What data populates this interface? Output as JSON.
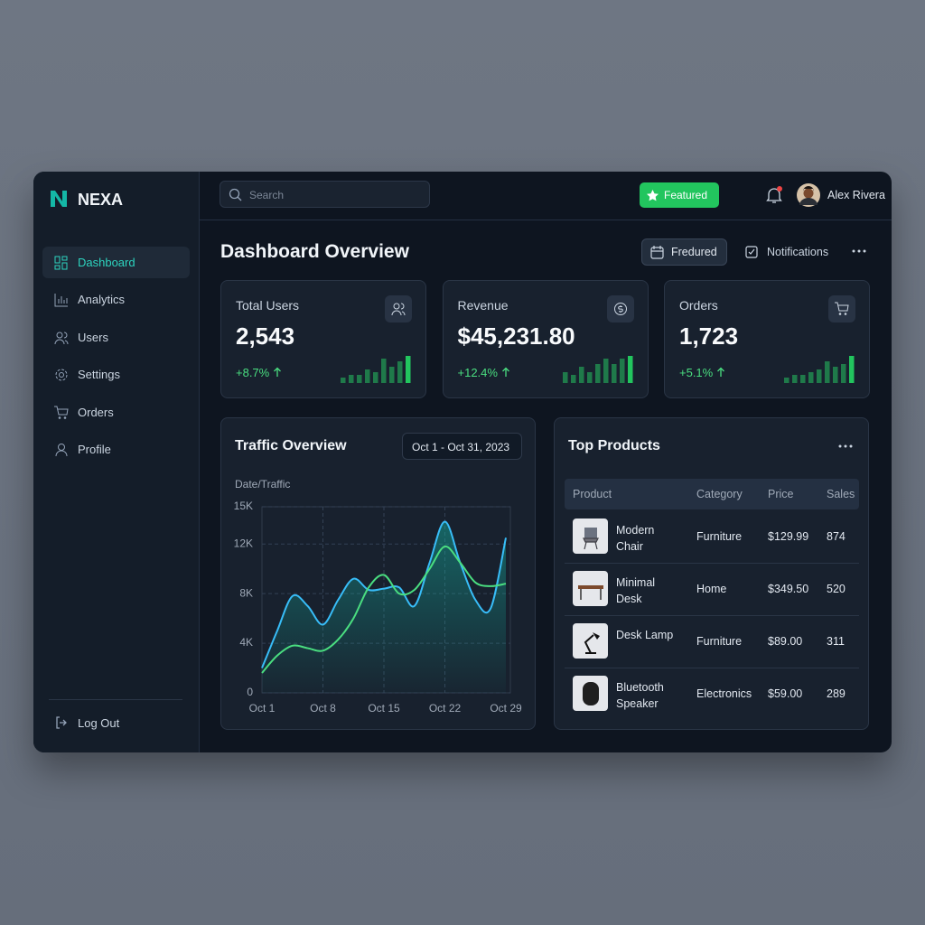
{
  "sidebar": {
    "brand": "NEXA",
    "nav": [
      "Dashboard",
      "Analytics",
      "Users",
      "Settings",
      "Orders",
      "Profile"
    ],
    "logout": "Log Out"
  },
  "topbar": {
    "search_placeholder": "Search",
    "featured": "Featured",
    "user_name": "Alex Rivera"
  },
  "header": {
    "title": "Dashboard Overview",
    "filter_button": "Fredured",
    "notifications": "Notifications"
  },
  "stats": [
    {
      "label": "Total Users",
      "value": "2,543",
      "change": "+8.7%",
      "bars": [
        2,
        3,
        3,
        5,
        4,
        9,
        6,
        8,
        10
      ]
    },
    {
      "label": "Revenue",
      "value": "$45,231.80",
      "change": "+12.4%",
      "bars": [
        4,
        3,
        6,
        4,
        7,
        9,
        7,
        9,
        10
      ]
    },
    {
      "label": "Orders",
      "value": "1,723",
      "change": "+5.1%",
      "bars": [
        2,
        3,
        3,
        4,
        5,
        8,
        6,
        7,
        10
      ]
    }
  ],
  "chart_data": {
    "type": "line",
    "title": "Traffic Overview",
    "date_range": "Oct 1 - Oct 31, 2023",
    "y_label": "Date/Traffic",
    "categories": [
      "Oct 1",
      null,
      null,
      null,
      "Oct 8",
      null,
      null,
      null,
      "Oct 15",
      null,
      null,
      null,
      "Oct 22",
      null,
      null,
      null,
      "Oct 29"
    ],
    "series": [
      {
        "color": "#38bdf8",
        "values": [
          2000,
          5000,
          7800,
          7000,
          5500,
          7500,
          9200,
          8300,
          8400,
          8500,
          7000,
          10500,
          13800,
          10500,
          7500,
          6800,
          12500
        ]
      },
      {
        "color": "#4ade80",
        "values": [
          1600,
          3000,
          3800,
          3600,
          3400,
          4300,
          6000,
          8500,
          9500,
          8000,
          8300,
          10000,
          11800,
          10500,
          8900,
          8600,
          8800
        ]
      }
    ],
    "ylim": [
      0,
      15000
    ],
    "yticks": [
      {
        "value": 0,
        "label": "0"
      },
      {
        "value": 4000,
        "label": "4K"
      },
      {
        "value": 8000,
        "label": "8K"
      },
      {
        "value": 12000,
        "label": "12K"
      },
      {
        "value": 15000,
        "label": "15K"
      }
    ],
    "grid": true
  },
  "top_products": {
    "title": "Top Products",
    "columns": [
      "Product",
      "Category",
      "Price",
      "Sales"
    ],
    "rows": [
      [
        "Modern Chair",
        "Furniture",
        "$129.99",
        874
      ],
      [
        "Minimal Desk",
        "Home",
        "$349.50",
        520
      ],
      [
        "Desk Lamp",
        "Furniture",
        "$89.00",
        311
      ],
      [
        "Bluetooth Speaker",
        "Electronics",
        "$59.00",
        289
      ]
    ]
  }
}
